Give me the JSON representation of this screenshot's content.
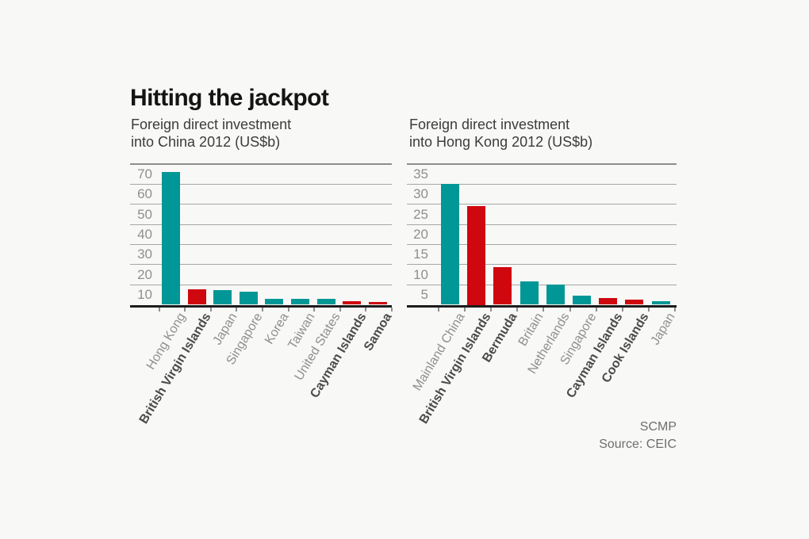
{
  "title": "Hitting the jackpot",
  "credit": "SCMP",
  "source_line": "Source: CEIC",
  "colors": {
    "teal": "#009796",
    "red": "#cf070f",
    "grid": "#a6a6a6",
    "grid_top": "#8d8d8d",
    "axis_baseline": "#1c1c1c",
    "axis_text": "#8f8f8f",
    "haven_label": "#4b4b4b",
    "title_text": "#141414",
    "subtitle_text": "#3c3c3c",
    "background": "#f8f8f6"
  },
  "chart_data": [
    {
      "type": "bar",
      "title": "Foreign direct investment into China 2012 (US$b)",
      "subtitle_lines": [
        "Foreign direct investment",
        "into China 2012 (US$b)"
      ],
      "categories": [
        "Hong Kong",
        "British Virgin Islands",
        "Japan",
        "Singapore",
        "Korea",
        "Taiwan",
        "United States",
        "Cayman Islands",
        "Samoa"
      ],
      "values": [
        66,
        7.8,
        7.4,
        6.5,
        3.1,
        2.8,
        2.8,
        1.7,
        1.3
      ],
      "tax_haven": [
        false,
        true,
        false,
        false,
        false,
        false,
        false,
        true,
        true
      ],
      "ylim": [
        0,
        70
      ],
      "yticks": [
        10,
        20,
        30,
        40,
        50,
        60,
        70
      ],
      "grid": true,
      "legend": "none",
      "bar_color_rule": "tax havens red + bold label, others teal"
    },
    {
      "type": "bar",
      "title": "Foreign direct investment into Hong Kong 2012 (US$b)",
      "subtitle_lines": [
        "Foreign direct investment",
        "into Hong Kong 2012 (US$b)"
      ],
      "categories": [
        "Mainland China",
        "British Virgin Islands",
        "Bermuda",
        "Britain",
        "Netherlands",
        "Singapore",
        "Cayman Islands",
        "Cook Islands",
        "Japan"
      ],
      "values": [
        30,
        24.5,
        9.3,
        5.8,
        5,
        2.2,
        1.6,
        1.2,
        0.8
      ],
      "tax_haven": [
        false,
        true,
        true,
        false,
        false,
        false,
        true,
        true,
        false
      ],
      "ylim": [
        0,
        35
      ],
      "yticks": [
        5,
        10,
        15,
        20,
        25,
        30,
        35
      ],
      "grid": true,
      "legend": "none",
      "bar_color_rule": "tax havens red + bold label, others teal"
    }
  ]
}
